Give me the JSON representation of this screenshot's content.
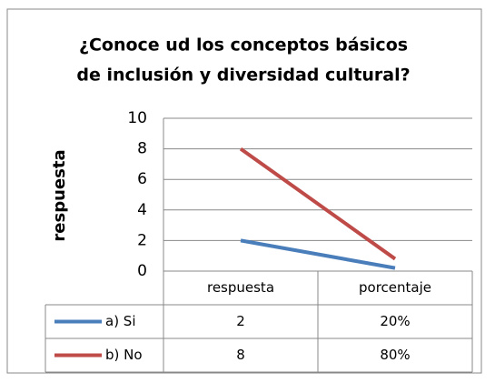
{
  "chart_data": {
    "type": "line",
    "title": "¿Conoce ud los conceptos básicos de inclusión y diversidad cultural?",
    "y_label": "respuesta",
    "categories": [
      "respuesta",
      "porcentaje"
    ],
    "series": [
      {
        "name": "a) Si",
        "color": "#4a7ebb",
        "values": [
          2,
          0.2
        ],
        "value_labels": [
          "2",
          "20%"
        ]
      },
      {
        "name": "b) No",
        "color": "#be4b48",
        "values": [
          8,
          0.8
        ],
        "value_labels": [
          "8",
          "80%"
        ]
      }
    ],
    "ylim": [
      0,
      10
    ],
    "yticks": [
      0,
      2,
      4,
      6,
      8,
      10
    ],
    "grid": true
  }
}
